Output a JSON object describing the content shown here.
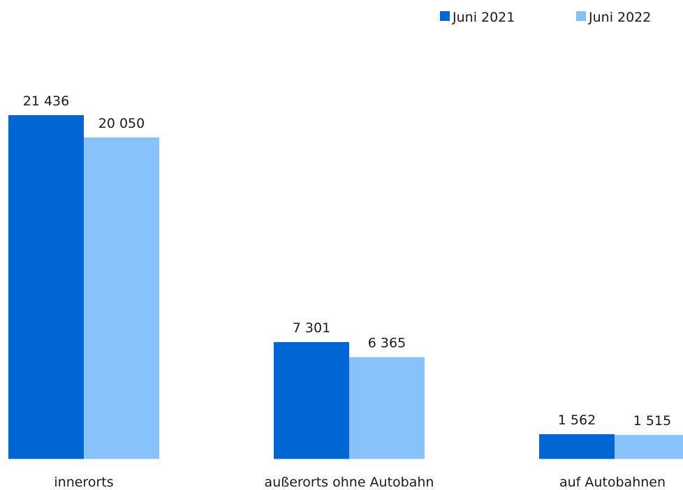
{
  "chart_data": {
    "type": "bar",
    "title": "",
    "xlabel": "",
    "ylabel": "",
    "ylim": [
      0,
      21436
    ],
    "grid": false,
    "legend_position": "top-right",
    "categories": [
      "innerorts",
      "außerorts ohne Autobahn",
      "auf Autobahnen"
    ],
    "series": [
      {
        "name": "Juni 2021",
        "color": "#0066d4",
        "values": [
          21436,
          7301,
          1562
        ],
        "labels": [
          "21 436",
          "7 301",
          "1 562"
        ]
      },
      {
        "name": "Juni 2022",
        "color": "#88c2fb",
        "values": [
          20050,
          6365,
          1515
        ],
        "labels": [
          "20 050",
          "6 365",
          "1 515"
        ]
      }
    ]
  }
}
